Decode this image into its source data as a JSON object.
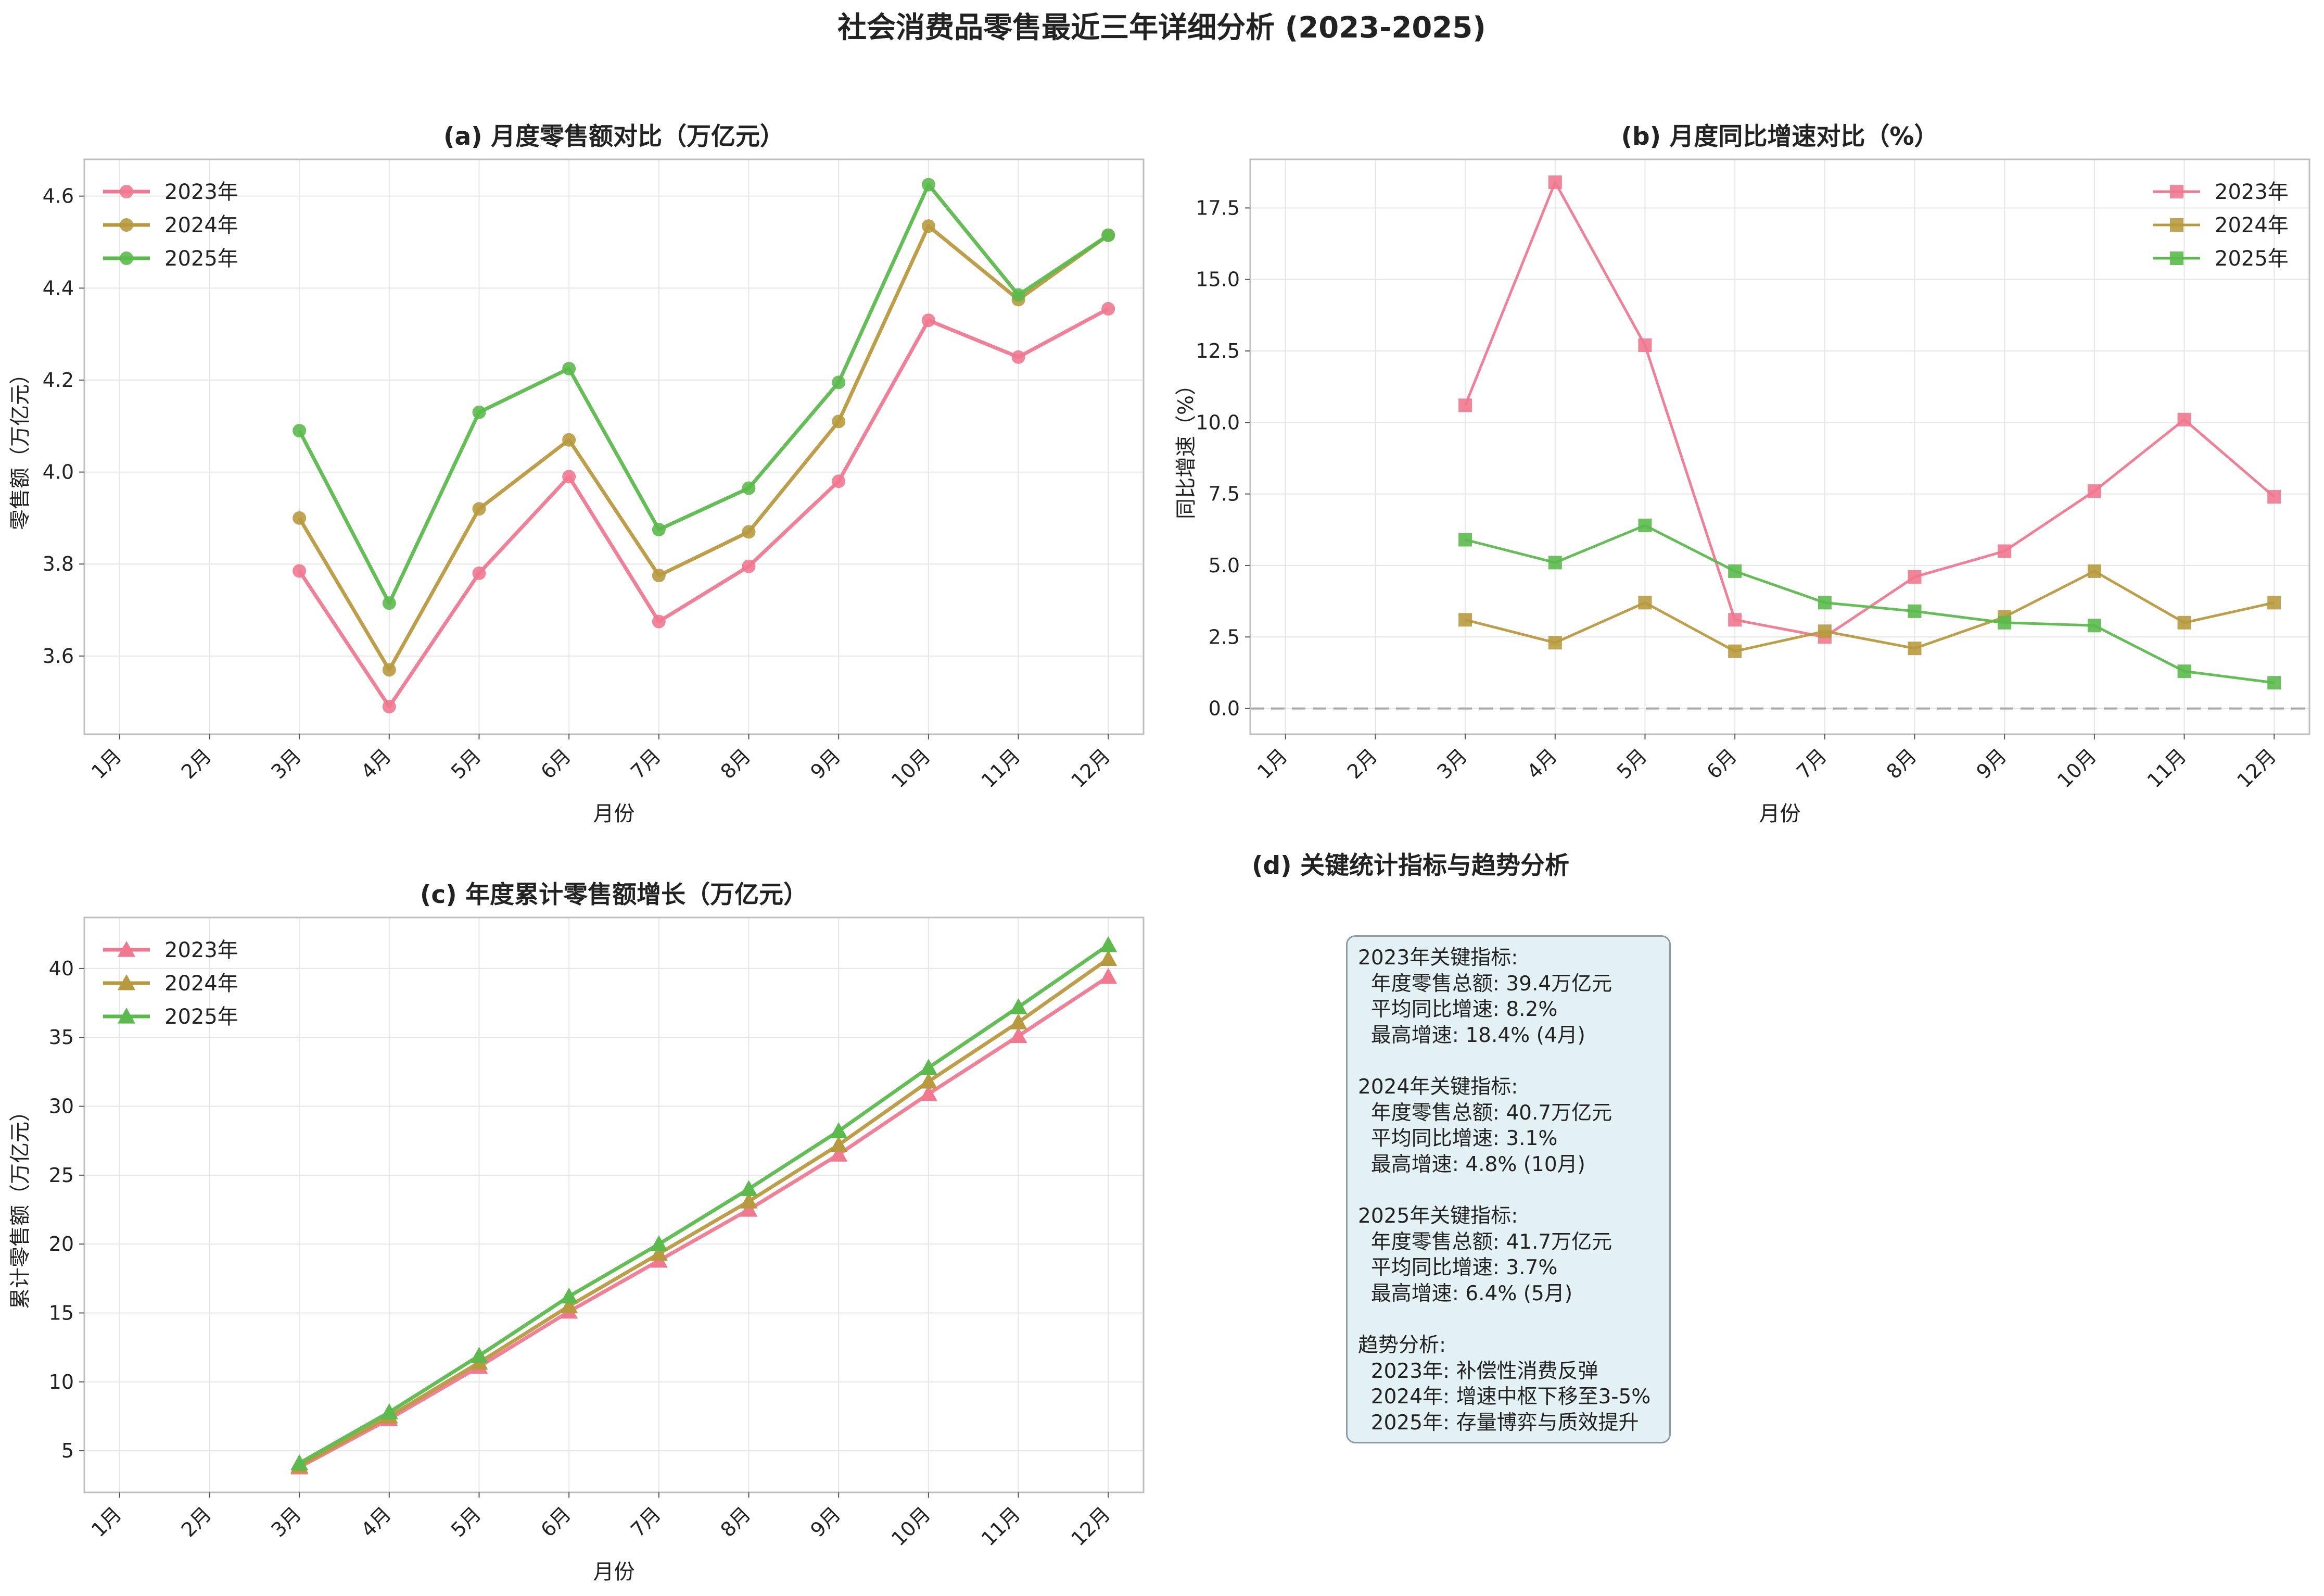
{
  "title": "社会消费品零售最近三年详细分析 (2023-2025)",
  "months": [
    "1月",
    "2月",
    "3月",
    "4月",
    "5月",
    "6月",
    "7月",
    "8月",
    "9月",
    "10月",
    "11月",
    "12月"
  ],
  "colors": {
    "2023年": "#f0788f",
    "2024年": "#b89a3e",
    "2025年": "#5bba4c"
  },
  "chart_data": [
    {
      "id": "a",
      "type": "line",
      "title": "(a) 月度零售额对比（万亿元）",
      "xlabel": "月份",
      "ylabel": "零售额（万亿元）",
      "categories": [
        "1月",
        "2月",
        "3月",
        "4月",
        "5月",
        "6月",
        "7月",
        "8月",
        "9月",
        "10月",
        "11月",
        "12月"
      ],
      "ylim": [
        3.43,
        4.68
      ],
      "yticks": [
        3.6,
        3.8,
        4.0,
        4.2,
        4.4,
        4.6
      ],
      "ytick_labels": [
        "3.6",
        "3.8",
        "4.0",
        "4.2",
        "4.4",
        "4.6"
      ],
      "marker": "circle",
      "legend": "top-left",
      "grid": true,
      "series": [
        {
          "name": "2023年",
          "values": [
            null,
            null,
            3.785,
            3.49,
            3.78,
            3.99,
            3.675,
            3.795,
            3.98,
            4.33,
            4.25,
            4.355
          ]
        },
        {
          "name": "2024年",
          "values": [
            null,
            null,
            3.9,
            3.57,
            3.92,
            4.07,
            3.775,
            3.87,
            4.11,
            4.535,
            4.375,
            4.515
          ]
        },
        {
          "name": "2025年",
          "values": [
            null,
            null,
            4.09,
            3.715,
            4.13,
            4.225,
            3.875,
            3.965,
            4.195,
            4.625,
            4.385,
            4.515
          ]
        }
      ]
    },
    {
      "id": "b",
      "type": "line",
      "title": "(b) 月度同比增速对比（%）",
      "xlabel": "月份",
      "ylabel": "同比增速（%）",
      "categories": [
        "1月",
        "2月",
        "3月",
        "4月",
        "5月",
        "6月",
        "7月",
        "8月",
        "9月",
        "10月",
        "11月",
        "12月"
      ],
      "ylim": [
        -0.9,
        19.2
      ],
      "yticks": [
        0.0,
        2.5,
        5.0,
        7.5,
        10.0,
        12.5,
        15.0,
        17.5
      ],
      "ytick_labels": [
        "0.0",
        "2.5",
        "5.0",
        "7.5",
        "10.0",
        "12.5",
        "15.0",
        "17.5"
      ],
      "marker": "square",
      "legend": "top-right",
      "grid": true,
      "zero_line": true,
      "series": [
        {
          "name": "2023年",
          "values": [
            null,
            null,
            10.6,
            18.4,
            12.7,
            3.1,
            2.5,
            4.6,
            5.5,
            7.6,
            10.1,
            7.4
          ]
        },
        {
          "name": "2024年",
          "values": [
            null,
            null,
            3.1,
            2.3,
            3.7,
            2.0,
            2.7,
            2.1,
            3.2,
            4.8,
            3.0,
            3.7
          ]
        },
        {
          "name": "2025年",
          "values": [
            null,
            null,
            5.9,
            5.1,
            6.4,
            4.8,
            3.7,
            3.4,
            3.0,
            2.9,
            1.3,
            0.9
          ]
        }
      ]
    },
    {
      "id": "c",
      "type": "line",
      "title": "(c) 年度累计零售额增长（万亿元）",
      "xlabel": "月份",
      "ylabel": "累计零售额（万亿元）",
      "categories": [
        "1月",
        "2月",
        "3月",
        "4月",
        "5月",
        "6月",
        "7月",
        "8月",
        "9月",
        "10月",
        "11月",
        "12月"
      ],
      "ylim": [
        1.98,
        43.7
      ],
      "yticks": [
        5,
        10,
        15,
        20,
        25,
        30,
        35,
        40
      ],
      "ytick_labels": [
        "5",
        "10",
        "15",
        "20",
        "25",
        "30",
        "35",
        "40"
      ],
      "marker": "triangle",
      "legend": "top-left",
      "grid": true,
      "series": [
        {
          "name": "2023年",
          "values": [
            null,
            null,
            3.8,
            7.3,
            11.1,
            15.1,
            18.8,
            22.5,
            26.5,
            30.9,
            35.1,
            39.4
          ]
        },
        {
          "name": "2024年",
          "values": [
            null,
            null,
            3.9,
            7.5,
            11.4,
            15.5,
            19.3,
            23.1,
            27.2,
            31.8,
            36.1,
            40.7
          ]
        },
        {
          "name": "2025年",
          "values": [
            null,
            null,
            4.1,
            7.8,
            11.9,
            16.2,
            20.0,
            24.0,
            28.2,
            32.8,
            37.2,
            41.7
          ]
        }
      ]
    }
  ],
  "panel_d": {
    "title": "(d) 关键统计指标与趋势分析",
    "lines": [
      "2023年关键指标:",
      "  年度零售总额: 39.4万亿元",
      "  平均同比增速: 8.2%",
      "  最高增速: 18.4% (4月)",
      "",
      "2024年关键指标:",
      "  年度零售总额: 40.7万亿元",
      "  平均同比增速: 3.1%",
      "  最高增速: 4.8% (10月)",
      "",
      "2025年关键指标:",
      "  年度零售总额: 41.7万亿元",
      "  平均同比增速: 3.7%",
      "  最高增速: 6.4% (5月)",
      "",
      "趋势分析:",
      "  2023年: 补偿性消费反弹",
      "  2024年: 增速中枢下移至3-5%",
      "  2025年: 存量博弈与质效提升"
    ]
  }
}
